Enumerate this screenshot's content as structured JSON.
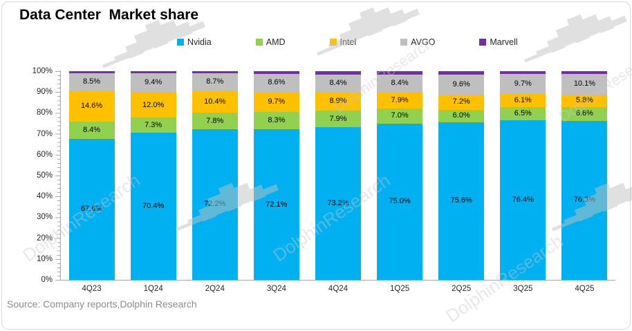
{
  "title": "Data Center  Market share",
  "source": "Source: Company reports,Dolphin Research",
  "watermark": {
    "text": "DolphinResearch"
  },
  "chart_data": {
    "type": "bar",
    "stacked": true,
    "orientation": "vertical",
    "title": "Data Center  Market share",
    "categories": [
      "4Q23",
      "1Q24",
      "2Q24",
      "3Q24",
      "4Q24",
      "1Q25",
      "2Q25",
      "3Q25",
      "4Q25"
    ],
    "series": [
      {
        "name": "Nvidia",
        "color": "#00B0F0",
        "labels_shown": true,
        "values": [
          67.6,
          70.4,
          72.2,
          72.1,
          73.2,
          75.0,
          75.6,
          76.4,
          76.3
        ]
      },
      {
        "name": "AMD",
        "color": "#92D050",
        "labels_shown": true,
        "values": [
          8.4,
          7.3,
          7.8,
          8.3,
          7.9,
          7.0,
          6.0,
          6.5,
          6.6
        ]
      },
      {
        "name": "Intel",
        "color": "#FFC000",
        "labels_shown": true,
        "values": [
          14.6,
          12.0,
          10.4,
          9.7,
          8.9,
          7.9,
          7.2,
          6.1,
          5.8
        ]
      },
      {
        "name": "AVGO",
        "color": "#BFBFBF",
        "labels_shown": true,
        "values": [
          8.5,
          9.4,
          8.7,
          8.6,
          8.4,
          8.4,
          9.6,
          9.7,
          10.1
        ]
      },
      {
        "name": "Marvell",
        "color": "#7030A0",
        "labels_shown": false,
        "values": [
          0.9,
          0.9,
          0.9,
          1.3,
          1.6,
          1.7,
          1.6,
          1.3,
          1.2
        ]
      }
    ],
    "ylabel": "",
    "xlabel": "",
    "ylim": [
      0,
      100
    ],
    "ytick_step": 10,
    "ytick_format": "percent",
    "minor_tick_step": 2,
    "grid": false,
    "legend_position": "top",
    "data_label_format": "one_decimal_percent",
    "axis_color": "#a6a6a6"
  }
}
